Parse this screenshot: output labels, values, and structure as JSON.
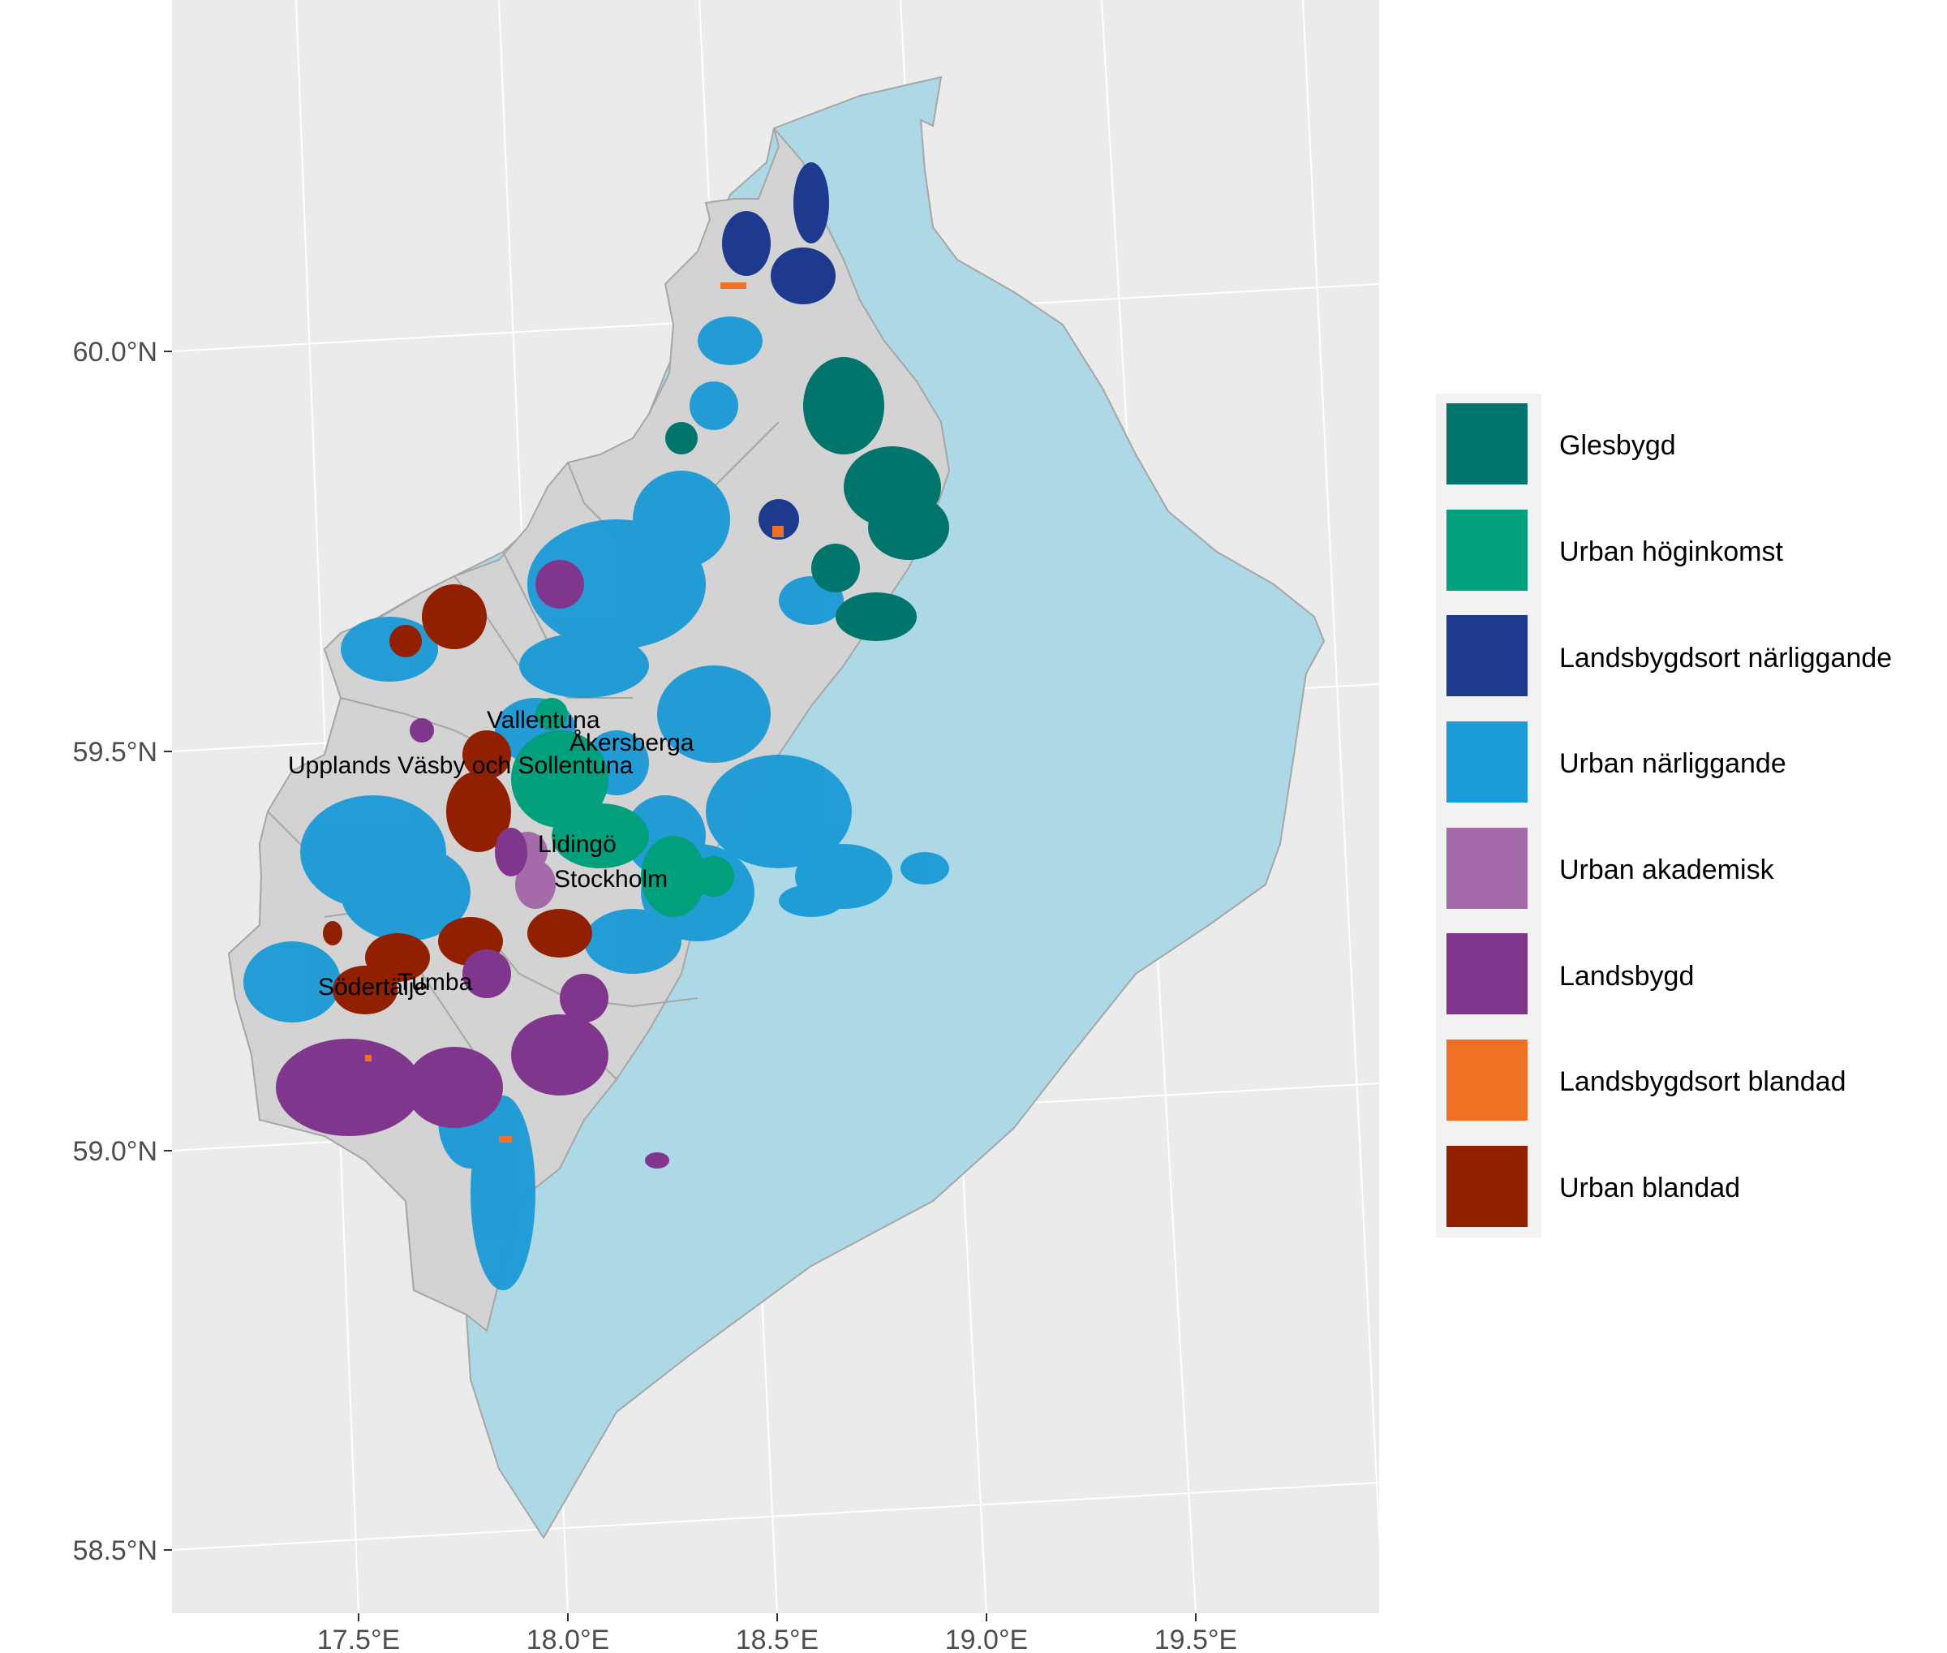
{
  "map": {
    "y_axis": {
      "ticks": [
        "60.0°N",
        "59.5°N",
        "59.0°N",
        "58.5°N"
      ]
    },
    "x_axis": {
      "ticks": [
        "17.5°E",
        "18.0°E",
        "18.5°E",
        "19.0°E",
        "19.5°E"
      ]
    },
    "place_labels": [
      "Vallentuna",
      "Åkersberga",
      "Upplands Väsby och Sollentuna",
      "Lidingö",
      "Stockholm",
      "Södertälje",
      "Tumba"
    ],
    "colors": {
      "panel_background": "#ebebeb",
      "gridline": "#ffffff",
      "sea": "#add8e6",
      "land": "#d3d3d3",
      "border": "#a6a6a6"
    }
  },
  "legend": {
    "items": [
      {
        "label": "Glesbygd",
        "color": "#00756c"
      },
      {
        "label": "Urban höginkomst",
        "color": "#00a07c"
      },
      {
        "label": "Landsbygdsort närliggande",
        "color": "#1e3a8e"
      },
      {
        "label": "Urban närliggande",
        "color": "#1a9ad6"
      },
      {
        "label": "Urban akademisk",
        "color": "#a56aaa"
      },
      {
        "label": "Landsbygd",
        "color": "#80368d"
      },
      {
        "label": "Landsbygdsort blandad",
        "color": "#f07124"
      },
      {
        "label": "Urban blandad",
        "color": "#912000"
      }
    ]
  }
}
